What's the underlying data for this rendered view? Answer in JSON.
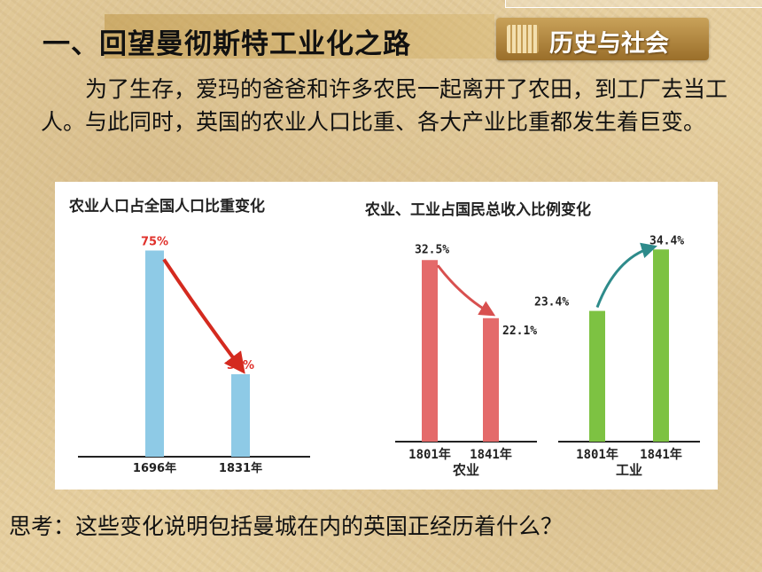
{
  "slide": {
    "title": "一、回望曼彻斯特工业化之路",
    "badge": "历史与社会",
    "paragraph": "为了生存，爱玛的爸爸和许多农民一起离开了农田，到工厂去当工人。与此同时，英国的农业人口比重、各大产业比重都发生着巨变。",
    "question": "思考：这些变化说明包括曼城在内的英国正经历着什么？"
  },
  "chart_data": [
    {
      "type": "bar",
      "title": "农业人口占全国人口比重变化",
      "categories": [
        "1696年",
        "1831年"
      ],
      "values": [
        75,
        30
      ],
      "value_labels": [
        "75%",
        "30%"
      ],
      "colors": {
        "bar": "#8ecae6",
        "label": "#e0312b",
        "arrow": "#d42a1f"
      }
    },
    {
      "type": "bar",
      "title": "农业、工业占国民总收入比例变化",
      "groups": [
        {
          "name": "农业",
          "categories": [
            "1801年",
            "1841年"
          ],
          "values": [
            32.5,
            22.1
          ],
          "value_labels": [
            "32.5%",
            "22.1%"
          ],
          "color": "#e46a6a",
          "arrow_color": "#d8504f"
        },
        {
          "name": "工业",
          "categories": [
            "1801年",
            "1841年"
          ],
          "values": [
            23.4,
            34.4
          ],
          "value_labels": [
            "23.4%",
            "34.4%"
          ],
          "color": "#7dc242",
          "arrow_color": "#2e8b8b"
        }
      ]
    }
  ]
}
